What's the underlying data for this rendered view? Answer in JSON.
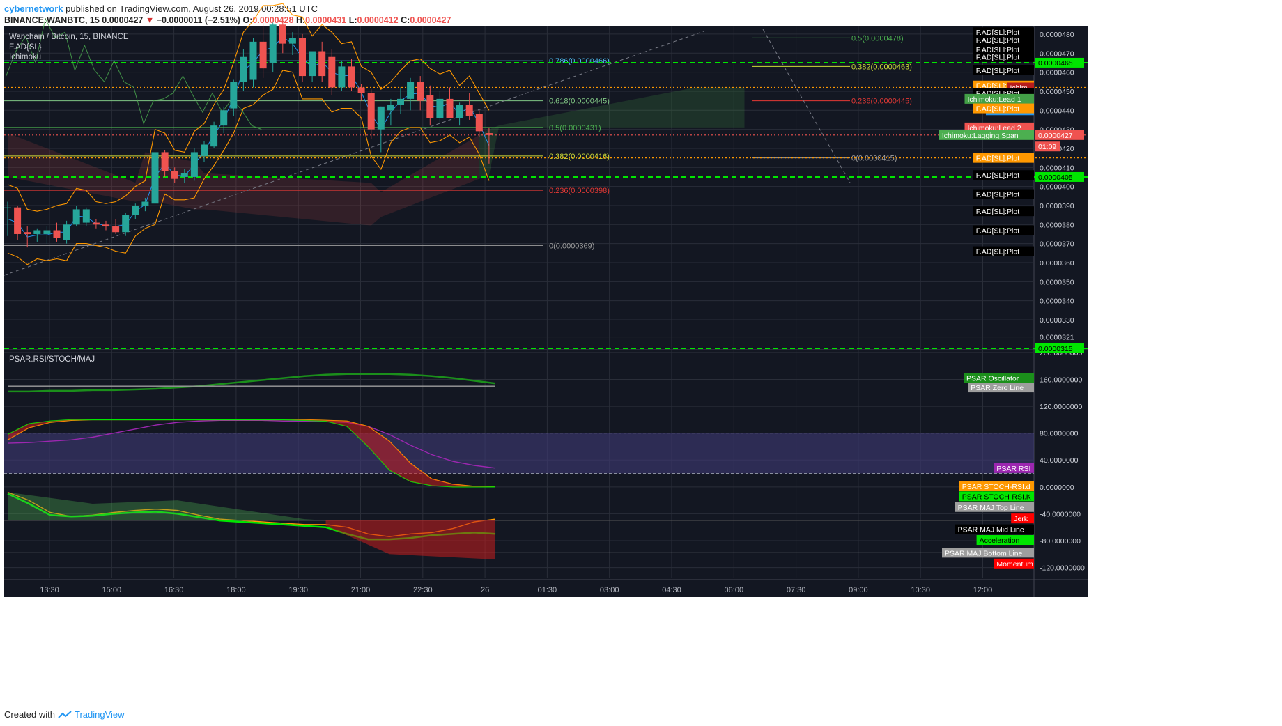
{
  "header": {
    "author": "cybernetwork",
    "published_text": "published on TradingView.com, August 26, 2019 00:28:51 UTC",
    "symbol": "BINANCE:WANBTC, 15",
    "last": "0.0000427",
    "change_arrow": "▼",
    "change": "−0.0000011 (−2.51%)",
    "o_label": "O:",
    "o": "0.0000428",
    "h_label": "H:",
    "h": "0.0000431",
    "l_label": "L:",
    "l": "0.0000412",
    "c_label": "C:",
    "c": "0.0000427"
  },
  "footer": {
    "created_with": "Created with",
    "brand": "TradingView",
    "logo_icon": "tradingview-logo-icon"
  },
  "colors": {
    "background": "#131722",
    "grid": "#2a2e39",
    "up": "#26a69a",
    "down": "#ef5350",
    "fib_green": "#4caf50",
    "fib_red": "#c62828",
    "hline_green": "#00e600",
    "hline_orange": "#ff9800"
  },
  "chart_data": [
    {
      "type": "candlestick",
      "title": "Wanchain / Bitcoin, 15, BINANCE",
      "indicators_legend": [
        "F.AD{SL}",
        "Ichimoku"
      ],
      "x_tick_labels": [
        "13:30",
        "15:00",
        "16:30",
        "18:00",
        "19:30",
        "21:00",
        "22:30",
        "26",
        "01:30",
        "03:00",
        "04:30",
        "06:00",
        "07:30",
        "09:00",
        "10:30",
        "12:00"
      ],
      "y_tick_labels": [
        "0.0000480",
        "0.0000470",
        "0.0000460",
        "0.0000450",
        "0.0000440",
        "0.0000430",
        "0.0000420",
        "0.0000410",
        "0.0000400",
        "0.0000390",
        "0.0000380",
        "0.0000370",
        "0.0000360",
        "0.0000350",
        "0.0000340",
        "0.0000330",
        "0.0000321"
      ],
      "ylim": [
        3.15e-05,
        4.84e-05
      ],
      "candles": [
        {
          "o": 3.89e-05,
          "h": 3.92e-05,
          "l": 3.74e-05,
          "c": 3.89e-05
        },
        {
          "o": 3.89e-05,
          "h": 3.9e-05,
          "l": 3.72e-05,
          "c": 3.75e-05
        },
        {
          "o": 3.76e-05,
          "h": 3.79e-05,
          "l": 3.68e-05,
          "c": 3.75e-05
        },
        {
          "o": 3.75e-05,
          "h": 3.78e-05,
          "l": 3.71e-05,
          "c": 3.77e-05
        },
        {
          "o": 3.75e-05,
          "h": 3.79e-05,
          "l": 3.7e-05,
          "c": 3.77e-05
        },
        {
          "o": 3.77e-05,
          "h": 3.81e-05,
          "l": 3.71e-05,
          "c": 3.73e-05
        },
        {
          "o": 3.72e-05,
          "h": 3.82e-05,
          "l": 3.7e-05,
          "c": 3.8e-05
        },
        {
          "o": 3.8e-05,
          "h": 3.9e-05,
          "l": 3.79e-05,
          "c": 3.88e-05
        },
        {
          "o": 3.81e-05,
          "h": 3.89e-05,
          "l": 3.79e-05,
          "c": 3.88e-05
        },
        {
          "o": 3.81e-05,
          "h": 3.83e-05,
          "l": 3.78e-05,
          "c": 3.8e-05
        },
        {
          "o": 3.8e-05,
          "h": 3.82e-05,
          "l": 3.77e-05,
          "c": 3.79e-05
        },
        {
          "o": 3.79e-05,
          "h": 3.83e-05,
          "l": 3.75e-05,
          "c": 3.76e-05
        },
        {
          "o": 3.76e-05,
          "h": 3.86e-05,
          "l": 3.74e-05,
          "c": 3.85e-05
        },
        {
          "o": 3.85e-05,
          "h": 3.91e-05,
          "l": 3.83e-05,
          "c": 3.9e-05
        },
        {
          "o": 3.9e-05,
          "h": 3.94e-05,
          "l": 3.87e-05,
          "c": 3.92e-05
        },
        {
          "o": 3.91e-05,
          "h": 4.21e-05,
          "l": 3.89e-05,
          "c": 4.18e-05
        },
        {
          "o": 4.18e-05,
          "h": 4.19e-05,
          "l": 4.05e-05,
          "c": 4.08e-05
        },
        {
          "o": 4.08e-05,
          "h": 4.1e-05,
          "l": 4.02e-05,
          "c": 4.04e-05
        },
        {
          "o": 4.05e-05,
          "h": 4.09e-05,
          "l": 4.02e-05,
          "c": 4.07e-05
        },
        {
          "o": 4.05e-05,
          "h": 4.2e-05,
          "l": 4.03e-05,
          "c": 4.18e-05
        },
        {
          "o": 4.16e-05,
          "h": 4.24e-05,
          "l": 4.13e-05,
          "c": 4.22e-05
        },
        {
          "o": 4.21e-05,
          "h": 4.34e-05,
          "l": 4.2e-05,
          "c": 4.32e-05
        },
        {
          "o": 4.32e-05,
          "h": 4.42e-05,
          "l": 4.28e-05,
          "c": 4.4e-05
        },
        {
          "o": 4.41e-05,
          "h": 4.56e-05,
          "l": 4.37e-05,
          "c": 4.55e-05
        },
        {
          "o": 4.55e-05,
          "h": 4.72e-05,
          "l": 4.5e-05,
          "c": 4.68e-05
        },
        {
          "o": 4.56e-05,
          "h": 4.78e-05,
          "l": 4.52e-05,
          "c": 4.76e-05
        },
        {
          "o": 4.76e-05,
          "h": 4.86e-05,
          "l": 4.57e-05,
          "c": 4.62e-05
        },
        {
          "o": 4.65e-05,
          "h": 4.86e-05,
          "l": 4.6e-05,
          "c": 4.85e-05
        },
        {
          "o": 4.85e-05,
          "h": 4.87e-05,
          "l": 4.7e-05,
          "c": 4.75e-05
        },
        {
          "o": 4.75e-05,
          "h": 4.81e-05,
          "l": 4.69e-05,
          "c": 4.78e-05
        },
        {
          "o": 4.78e-05,
          "h": 4.8e-05,
          "l": 4.55e-05,
          "c": 4.58e-05
        },
        {
          "o": 4.58e-05,
          "h": 4.7e-05,
          "l": 4.55e-05,
          "c": 4.71e-05
        },
        {
          "o": 4.71e-05,
          "h": 4.76e-05,
          "l": 4.55e-05,
          "c": 4.58e-05
        },
        {
          "o": 4.68e-05,
          "h": 4.72e-05,
          "l": 4.48e-05,
          "c": 4.52e-05
        },
        {
          "o": 4.52e-05,
          "h": 4.66e-05,
          "l": 4.5e-05,
          "c": 4.63e-05
        },
        {
          "o": 4.63e-05,
          "h": 4.67e-05,
          "l": 4.5e-05,
          "c": 4.52e-05
        },
        {
          "o": 4.52e-05,
          "h": 4.54e-05,
          "l": 4.45e-05,
          "c": 4.49e-05
        },
        {
          "o": 4.49e-05,
          "h": 4.51e-05,
          "l": 4.25e-05,
          "c": 4.3e-05
        },
        {
          "o": 4.3e-05,
          "h": 4.42e-05,
          "l": 4.18e-05,
          "c": 4.42e-05
        },
        {
          "o": 4.4e-05,
          "h": 4.46e-05,
          "l": 4.32e-05,
          "c": 4.43e-05
        },
        {
          "o": 4.43e-05,
          "h": 4.52e-05,
          "l": 4.38e-05,
          "c": 4.46e-05
        },
        {
          "o": 4.46e-05,
          "h": 4.57e-05,
          "l": 4.4e-05,
          "c": 4.55e-05
        },
        {
          "o": 4.55e-05,
          "h": 4.58e-05,
          "l": 4.4e-05,
          "c": 4.45e-05
        },
        {
          "o": 4.48e-05,
          "h": 4.53e-05,
          "l": 4.32e-05,
          "c": 4.36e-05
        },
        {
          "o": 4.36e-05,
          "h": 4.5e-05,
          "l": 4.33e-05,
          "c": 4.46e-05
        },
        {
          "o": 4.46e-05,
          "h": 4.52e-05,
          "l": 4.36e-05,
          "c": 4.36e-05
        },
        {
          "o": 4.36e-05,
          "h": 4.44e-05,
          "l": 4.32e-05,
          "c": 4.43e-05
        },
        {
          "o": 4.43e-05,
          "h": 4.49e-05,
          "l": 4.35e-05,
          "c": 4.37e-05
        },
        {
          "o": 4.38e-05,
          "h": 4.4e-05,
          "l": 4.26e-05,
          "c": 4.29e-05
        },
        {
          "o": 4.28e-05,
          "h": 4.31e-05,
          "l": 4.12e-05,
          "c": 4.27e-05
        }
      ],
      "fib_levels": [
        {
          "label": "0.786(0.0000466)",
          "value": 4.66e-05,
          "color": "#4fc3f7"
        },
        {
          "label": "0.618(0.0000445)",
          "value": 4.45e-05,
          "color": "#81c784"
        },
        {
          "label": "0.5(0.0000431)",
          "value": 4.31e-05,
          "color": "#4caf50"
        },
        {
          "label": "0.382(0.0000416)",
          "value": 4.16e-05,
          "color": "#cddc39"
        },
        {
          "label": "0.236(0.0000398)",
          "value": 3.98e-05,
          "color": "#e53935"
        },
        {
          "label": "0(0.0000369)",
          "value": 3.69e-05,
          "color": "#9e9e9e"
        }
      ],
      "fib_levels_projection": [
        {
          "label": "0.5(0.0000478)",
          "value": 4.78e-05,
          "color": "#4caf50"
        },
        {
          "label": "0.382(0.0000463)",
          "value": 4.63e-05,
          "color": "#cddc39"
        },
        {
          "label": "0.236(0.0000445)",
          "value": 4.45e-05,
          "color": "#e53935"
        },
        {
          "label": "0(0.0000415)",
          "value": 4.15e-05,
          "color": "#9e9e9e"
        }
      ],
      "horizontal_lines": [
        {
          "value": 4.65e-05,
          "color": "#00e600",
          "style": "dashed"
        },
        {
          "value": 4.05e-05,
          "color": "#00e600",
          "style": "dashed"
        },
        {
          "value": 3.15e-05,
          "color": "#00e600",
          "style": "dashed"
        },
        {
          "value": 4.52e-05,
          "color": "#ff9800",
          "style": "dotted"
        },
        {
          "value": 4.15e-05,
          "color": "#ff9800",
          "style": "dotted"
        },
        {
          "value": 4.27e-05,
          "color": "#ef5350",
          "style": "dotted"
        }
      ],
      "price_tags": [
        {
          "text": "F.AD[SL]:Plot",
          "value": 4.81e-05,
          "bg": "#000000",
          "fg": "#ffffff"
        },
        {
          "text": "F.AD[SL]:Plot",
          "value": 4.77e-05,
          "bg": "#000000",
          "fg": "#ffffff"
        },
        {
          "text": "F.AD[SL]:Plot",
          "value": 4.72e-05,
          "bg": "#000000",
          "fg": "#ffffff"
        },
        {
          "text": "F.AD[SL]:Plot",
          "value": 4.68e-05,
          "bg": "#000000",
          "fg": "#ffffff"
        },
        {
          "text": "F.AD[SL]:Plot",
          "value": 4.61e-05,
          "bg": "#000000",
          "fg": "#ffffff"
        },
        {
          "text": "F.AD[SL]:Plot",
          "value": 4.53e-05,
          "bg": "#ff9800",
          "fg": "#ffffff"
        },
        {
          "text": "Ichim",
          "value": 4.52e-05,
          "bg": "#b71c1c",
          "fg": "#ffffff"
        },
        {
          "text": "F.AD[SL]:Plot",
          "value": 4.49e-05,
          "bg": "#000000",
          "fg": "#ffffff"
        },
        {
          "text": "Ichimoku:Lead 1",
          "value": 4.46e-05,
          "bg": "#43a047",
          "fg": "#ffffff"
        },
        {
          "text": "Ichimoku:C",
          "value": 4.4e-05,
          "bg": "#2196f3",
          "fg": "#ffffff"
        },
        {
          "text": "F.AD[SL]:Plot",
          "value": 4.41e-05,
          "bg": "#ff9800",
          "fg": "#ffffff"
        },
        {
          "text": "Ichimoku:Lead 2",
          "value": 4.31e-05,
          "bg": "#ef5350",
          "fg": "#ffffff"
        },
        {
          "text": "Ichimoku:Lagging Span",
          "value": 4.27e-05,
          "bg": "#4caf50",
          "fg": "#ffffff"
        },
        {
          "text": "F.AD[SL]:Plot",
          "value": 4.15e-05,
          "bg": "#ff9800",
          "fg": "#ffffff"
        },
        {
          "text": "F.AD[SL]:Plot",
          "value": 4.06e-05,
          "bg": "#000000",
          "fg": "#ffffff"
        },
        {
          "text": "F.AD[SL]:Plot",
          "value": 3.96e-05,
          "bg": "#000000",
          "fg": "#ffffff"
        },
        {
          "text": "F.AD[SL]:Plot",
          "value": 3.87e-05,
          "bg": "#000000",
          "fg": "#ffffff"
        },
        {
          "text": "F.AD[SL]:Plot",
          "value": 3.77e-05,
          "bg": "#000000",
          "fg": "#ffffff"
        },
        {
          "text": "F.AD[SL]:Plot",
          "value": 3.66e-05,
          "bg": "#000000",
          "fg": "#ffffff"
        }
      ],
      "axis_tags": [
        {
          "text": "0.0000465",
          "value": 4.65e-05,
          "bg": "#00e600",
          "fg": "#000000"
        },
        {
          "text": "0.0000427",
          "value": 4.27e-05,
          "bg": "#ef5350",
          "fg": "#ffffff"
        },
        {
          "text": "01:09",
          "value": 4.21e-05,
          "bg": "#ef5350",
          "fg": "#ffffff"
        },
        {
          "text": "0.0000405",
          "value": 4.05e-05,
          "bg": "#00e600",
          "fg": "#000000"
        },
        {
          "text": "0.0000315",
          "value": 3.15e-05,
          "bg": "#00e600",
          "fg": "#000000"
        }
      ]
    },
    {
      "type": "line",
      "title": "PSAR.RSI/STOCH/MAJ",
      "y_tick_labels": [
        "200.0000000",
        "160.0000000",
        "120.0000000",
        "80.0000000",
        "40.0000000",
        "0.0000000",
        "-40.0000000",
        "-80.0000000",
        "-120.0000000"
      ],
      "ylim": [
        -136,
        202
      ],
      "bands": [
        {
          "from": 20,
          "to": 80,
          "color": "#3f3a76"
        }
      ],
      "series": [
        {
          "name": "PSAR Oscillator",
          "color": "#1b8f1b",
          "values": [
            142,
            142,
            143,
            143,
            144,
            144,
            145,
            146,
            148,
            150,
            153,
            156,
            159,
            162,
            165,
            167,
            168,
            168,
            168,
            167,
            165,
            162,
            158,
            154
          ]
        },
        {
          "name": "PSAR Zero Line",
          "color": "#9e9e9e",
          "values": [
            150,
            150,
            150,
            150,
            150,
            150,
            150,
            150,
            150,
            150,
            150,
            150,
            150,
            150,
            150,
            150,
            150,
            150,
            150,
            150,
            150,
            150,
            150,
            150
          ]
        },
        {
          "name": "PSAR RSI",
          "color": "#9c27b0",
          "values": [
            65,
            66,
            68,
            70,
            74,
            80,
            86,
            92,
            96,
            98,
            99,
            99,
            99,
            98,
            98,
            97,
            96,
            90,
            78,
            62,
            48,
            38,
            32,
            28
          ]
        },
        {
          "name": "PSAR STOCH-RSI.d",
          "color": "#ff9800",
          "values": [
            70,
            88,
            96,
            99,
            100,
            100,
            100,
            100,
            100,
            100,
            100,
            100,
            100,
            100,
            100,
            99,
            98,
            90,
            68,
            35,
            12,
            4,
            1,
            0
          ]
        },
        {
          "name": "PSAR STOCH-RSI.K",
          "color": "#00e600",
          "values": [
            78,
            94,
            98,
            100,
            100,
            100,
            100,
            100,
            100,
            100,
            100,
            100,
            100,
            100,
            99,
            98,
            90,
            60,
            25,
            8,
            2,
            0,
            0,
            0
          ]
        },
        {
          "name": "PSAR MAJ Top Line",
          "color": "#ff9800",
          "values": [
            -8,
            -20,
            -38,
            -44,
            -42,
            -38,
            -35,
            -33,
            -35,
            -42,
            -48,
            -50,
            -52,
            -54,
            -56,
            -56,
            -60,
            -70,
            -74,
            -70,
            -68,
            -62,
            -52,
            -48
          ]
        },
        {
          "name": "PSAR MAJ Mid Line",
          "color": "#000000",
          "values": [
            -50,
            -50,
            -50,
            -50,
            -50,
            -50,
            -50,
            -50,
            -50,
            -50,
            -50,
            -50,
            -50,
            -50,
            -50,
            -50,
            -50,
            -50,
            -50,
            -50,
            -50,
            -50,
            -50,
            -50
          ]
        },
        {
          "name": "Acceleration",
          "color": "#00e600",
          "values": [
            -10,
            -25,
            -42,
            -44,
            -43,
            -40,
            -38,
            -37,
            -40,
            -45,
            -50,
            -52,
            -54,
            -56,
            -58,
            -60,
            -70,
            -78,
            -78,
            -76,
            -72,
            -70,
            -68,
            -70
          ]
        },
        {
          "name": "PSAR MAJ Bottom Line",
          "color": "#9e9e9e",
          "values": [
            -98,
            -98,
            -98,
            -98,
            -98,
            -98,
            -98,
            -98,
            -98,
            -98,
            -98,
            -98,
            -98,
            -98,
            -98,
            -98,
            -98,
            -98,
            -98,
            -98,
            -98,
            -98,
            -98,
            -98
          ]
        }
      ],
      "legend": [
        {
          "text": "PSAR Oscillator",
          "value": 162,
          "bg": "#1b8f1b",
          "fg": "#ffffff"
        },
        {
          "text": "PSAR Zero Line",
          "value": 148,
          "bg": "#9e9e9e",
          "fg": "#ffffff"
        },
        {
          "text": "PSAR RSI",
          "value": 28,
          "bg": "#9c27b0",
          "fg": "#ffffff"
        },
        {
          "text": "PSAR STOCH-RSI.d",
          "value": 1,
          "bg": "#ff9800",
          "fg": "#ffffff"
        },
        {
          "text": "PSAR STOCH-RSI.K",
          "value": -14,
          "bg": "#00e600",
          "fg": "#000000"
        },
        {
          "text": "PSAR MAJ Top Line",
          "value": -30,
          "bg": "#9e9e9e",
          "fg": "#ffffff"
        },
        {
          "text": "Jerk",
          "value": -47,
          "bg": "#ff0000",
          "fg": "#ffffff"
        },
        {
          "text": "PSAR MAJ Mid Line",
          "value": -63,
          "bg": "#000000",
          "fg": "#ffffff"
        },
        {
          "text": "Acceleration",
          "value": -79,
          "bg": "#00e600",
          "fg": "#000000"
        },
        {
          "text": "PSAR MAJ Bottom Line",
          "value": -98,
          "bg": "#9e9e9e",
          "fg": "#ffffff"
        },
        {
          "text": "Momentum",
          "value": -114,
          "bg": "#ff0000",
          "fg": "#ffffff"
        }
      ]
    }
  ]
}
